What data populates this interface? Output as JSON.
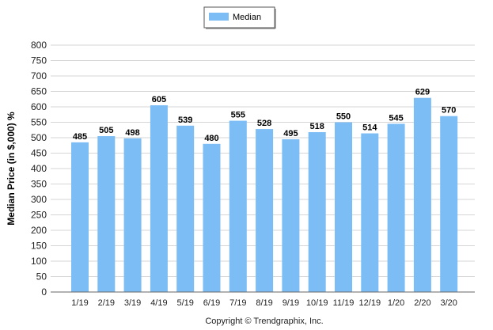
{
  "chart_data": {
    "type": "bar",
    "categories": [
      "1/19",
      "2/19",
      "3/19",
      "4/19",
      "5/19",
      "6/19",
      "7/19",
      "8/19",
      "9/19",
      "10/19",
      "11/19",
      "12/19",
      "1/20",
      "2/20",
      "3/20"
    ],
    "series": [
      {
        "name": "Median",
        "values": [
          485,
          505,
          498,
          605,
          539,
          480,
          555,
          528,
          495,
          518,
          550,
          514,
          545,
          629,
          570
        ],
        "color": "#7dbdf5"
      }
    ],
    "ylabel": "Median Price (in $,000) %",
    "xlabel": "",
    "ylim": [
      0,
      800
    ],
    "yticks": [
      0,
      50,
      100,
      150,
      200,
      250,
      300,
      350,
      400,
      450,
      500,
      550,
      600,
      650,
      700,
      750,
      800
    ],
    "grid": true,
    "legend_position": "top-center",
    "data_labels": true
  },
  "footer": {
    "copyright": "Copyright © Trendgraphix, Inc."
  }
}
